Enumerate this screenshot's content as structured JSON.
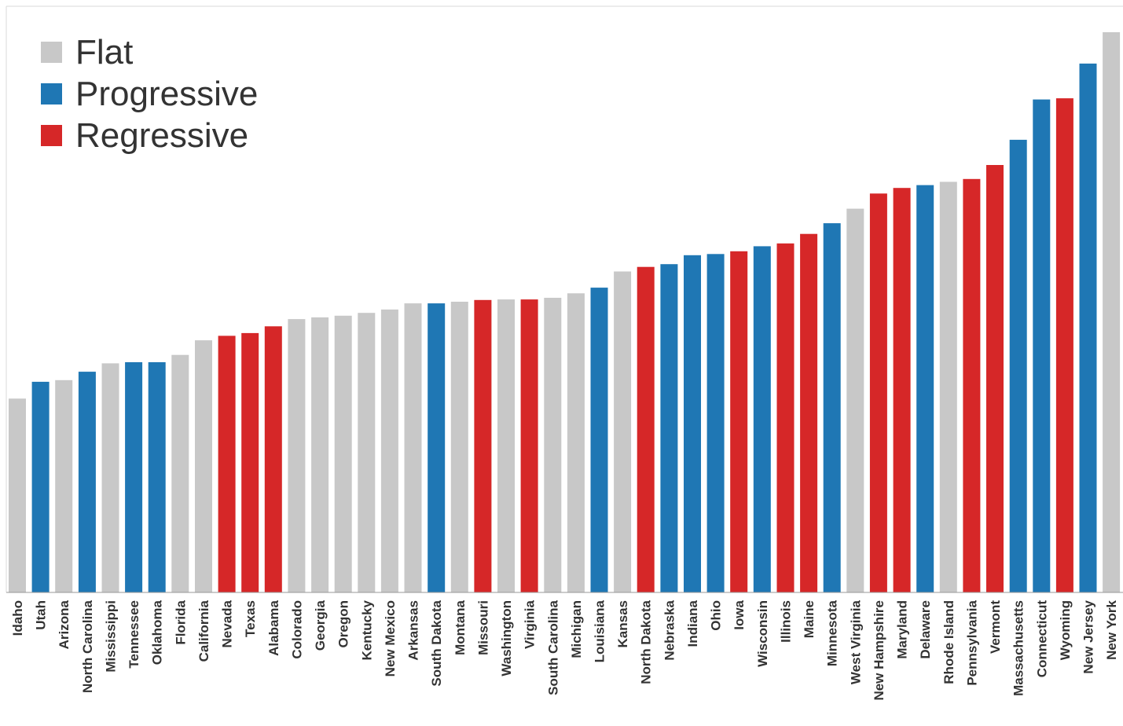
{
  "chart_data": {
    "type": "bar",
    "title": "",
    "xlabel": "",
    "ylabel": "",
    "ylim": [
      0,
      100
    ],
    "grid": false,
    "legend_position": "top-left",
    "legend": [
      {
        "name": "Flat",
        "color": "#c8c8c8"
      },
      {
        "name": "Progressive",
        "color": "#1f77b4"
      },
      {
        "name": "Regressive",
        "color": "#d62728"
      }
    ],
    "categories": [
      "Idaho",
      "Utah",
      "Arizona",
      "North Carolina",
      "Mississippi",
      "Tennessee",
      "Oklahoma",
      "Florida",
      "California",
      "Nevada",
      "Texas",
      "Alabama",
      "Colorado",
      "Georgia",
      "Oregon",
      "Kentucky",
      "New Mexico",
      "Arkansas",
      "South Dakota",
      "Montana",
      "Missouri",
      "Washington",
      "Virginia",
      "South Carolina",
      "Michigan",
      "Louisiana",
      "Kansas",
      "North Dakota",
      "Nebraska",
      "Indiana",
      "Ohio",
      "Iowa",
      "Wisconsin",
      "Illinois",
      "Maine",
      "Minnesota",
      "West Virginia",
      "New Hampshire",
      "Maryland",
      "Delaware",
      "Rhode Island",
      "Pennsylvania",
      "Vermont",
      "Massachusetts",
      "Connecticut",
      "Wyoming",
      "New Jersey",
      "New York"
    ],
    "types": [
      "Flat",
      "Progressive",
      "Flat",
      "Progressive",
      "Flat",
      "Progressive",
      "Progressive",
      "Flat",
      "Flat",
      "Regressive",
      "Regressive",
      "Regressive",
      "Flat",
      "Flat",
      "Flat",
      "Flat",
      "Flat",
      "Flat",
      "Progressive",
      "Flat",
      "Regressive",
      "Flat",
      "Regressive",
      "Flat",
      "Flat",
      "Progressive",
      "Flat",
      "Regressive",
      "Progressive",
      "Progressive",
      "Progressive",
      "Regressive",
      "Progressive",
      "Regressive",
      "Regressive",
      "Progressive",
      "Flat",
      "Regressive",
      "Regressive",
      "Progressive",
      "Flat",
      "Regressive",
      "Regressive",
      "Progressive",
      "Progressive",
      "Regressive",
      "Progressive",
      "Flat"
    ],
    "values": [
      34.6,
      37.6,
      37.9,
      39.4,
      40.9,
      41.1,
      41.1,
      42.4,
      45.0,
      45.8,
      46.3,
      47.5,
      48.8,
      49.1,
      49.4,
      49.9,
      50.5,
      51.6,
      51.6,
      51.9,
      52.2,
      52.3,
      52.3,
      52.6,
      53.4,
      54.4,
      57.3,
      58.1,
      58.6,
      60.2,
      60.4,
      60.9,
      61.8,
      62.3,
      64.0,
      65.9,
      68.5,
      71.2,
      72.2,
      72.7,
      73.3,
      73.8,
      76.3,
      80.8,
      88.0,
      88.2,
      94.4,
      100.0
    ]
  }
}
